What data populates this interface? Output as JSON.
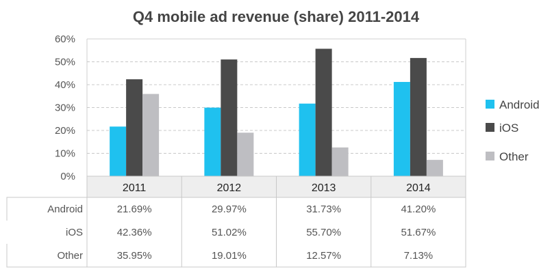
{
  "chart_data": {
    "type": "bar",
    "title": "Q4 mobile ad revenue (share) 2011-2014",
    "categories": [
      "2011",
      "2012",
      "2013",
      "2014"
    ],
    "series": [
      {
        "name": "Android",
        "color": "#1fc1ef",
        "values": [
          21.69,
          29.97,
          31.73,
          41.2
        ],
        "labels": [
          "21.69%",
          "29.97%",
          "31.73%",
          "41.20%"
        ]
      },
      {
        "name": "iOS",
        "color": "#4a4a4a",
        "values": [
          42.36,
          51.02,
          55.7,
          51.67
        ],
        "labels": [
          "42.36%",
          "51.02%",
          "55.70%",
          "51.67%"
        ]
      },
      {
        "name": "Other",
        "color": "#bebec2",
        "values": [
          35.95,
          19.01,
          12.57,
          7.13
        ],
        "labels": [
          "35.95%",
          "19.01%",
          "12.57%",
          "7.13%"
        ]
      }
    ],
    "ylim": [
      0,
      60
    ],
    "yticks": [
      0,
      10,
      20,
      30,
      40,
      50,
      60
    ],
    "ytick_labels": [
      "0%",
      "10%",
      "20%",
      "30%",
      "40%",
      "50%",
      "60%"
    ],
    "grid": "dashed horizontal",
    "legend": "right",
    "data_table": true
  }
}
